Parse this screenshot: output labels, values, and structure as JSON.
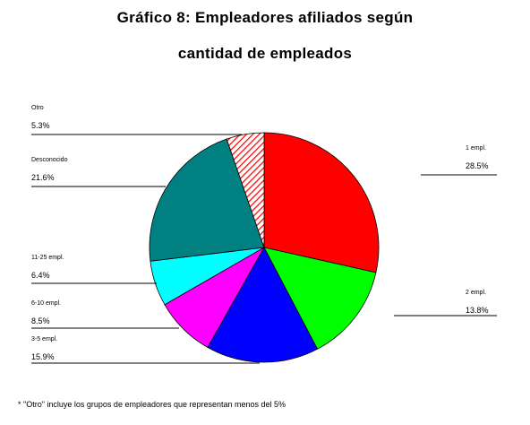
{
  "chart_data": {
    "type": "pie",
    "title_line1": "Gráfico 8: Empleadores afiliados según",
    "title_line2": "cantidad de empleados",
    "slices": [
      {
        "label": "1 empl.",
        "value_text": "28.5%",
        "value": 28.5,
        "color": "#ff0000"
      },
      {
        "label": "2 empl.",
        "value_text": "13.8%",
        "value": 13.8,
        "color": "#00ff00"
      },
      {
        "label": "3-5 empl.",
        "value_text": "15.9%",
        "value": 15.9,
        "color": "#0000ff"
      },
      {
        "label": "6-10 empl.",
        "value_text": "8.5%",
        "value": 8.5,
        "color": "#ff00ff"
      },
      {
        "label": "11-25 empl.",
        "value_text": "6.4%",
        "value": 6.4,
        "color": "#00ffff"
      },
      {
        "label": "Desconocido",
        "value_text": "21.6%",
        "value": 21.6,
        "color": "#008080"
      },
      {
        "label": "Otro",
        "value_text": "5.3%",
        "value": 5.3,
        "color": "#ff0000",
        "pattern": "hatched"
      }
    ],
    "footnote": "* \"Otro\" incluye los grupos de empleadores que representan menos del 5%"
  }
}
